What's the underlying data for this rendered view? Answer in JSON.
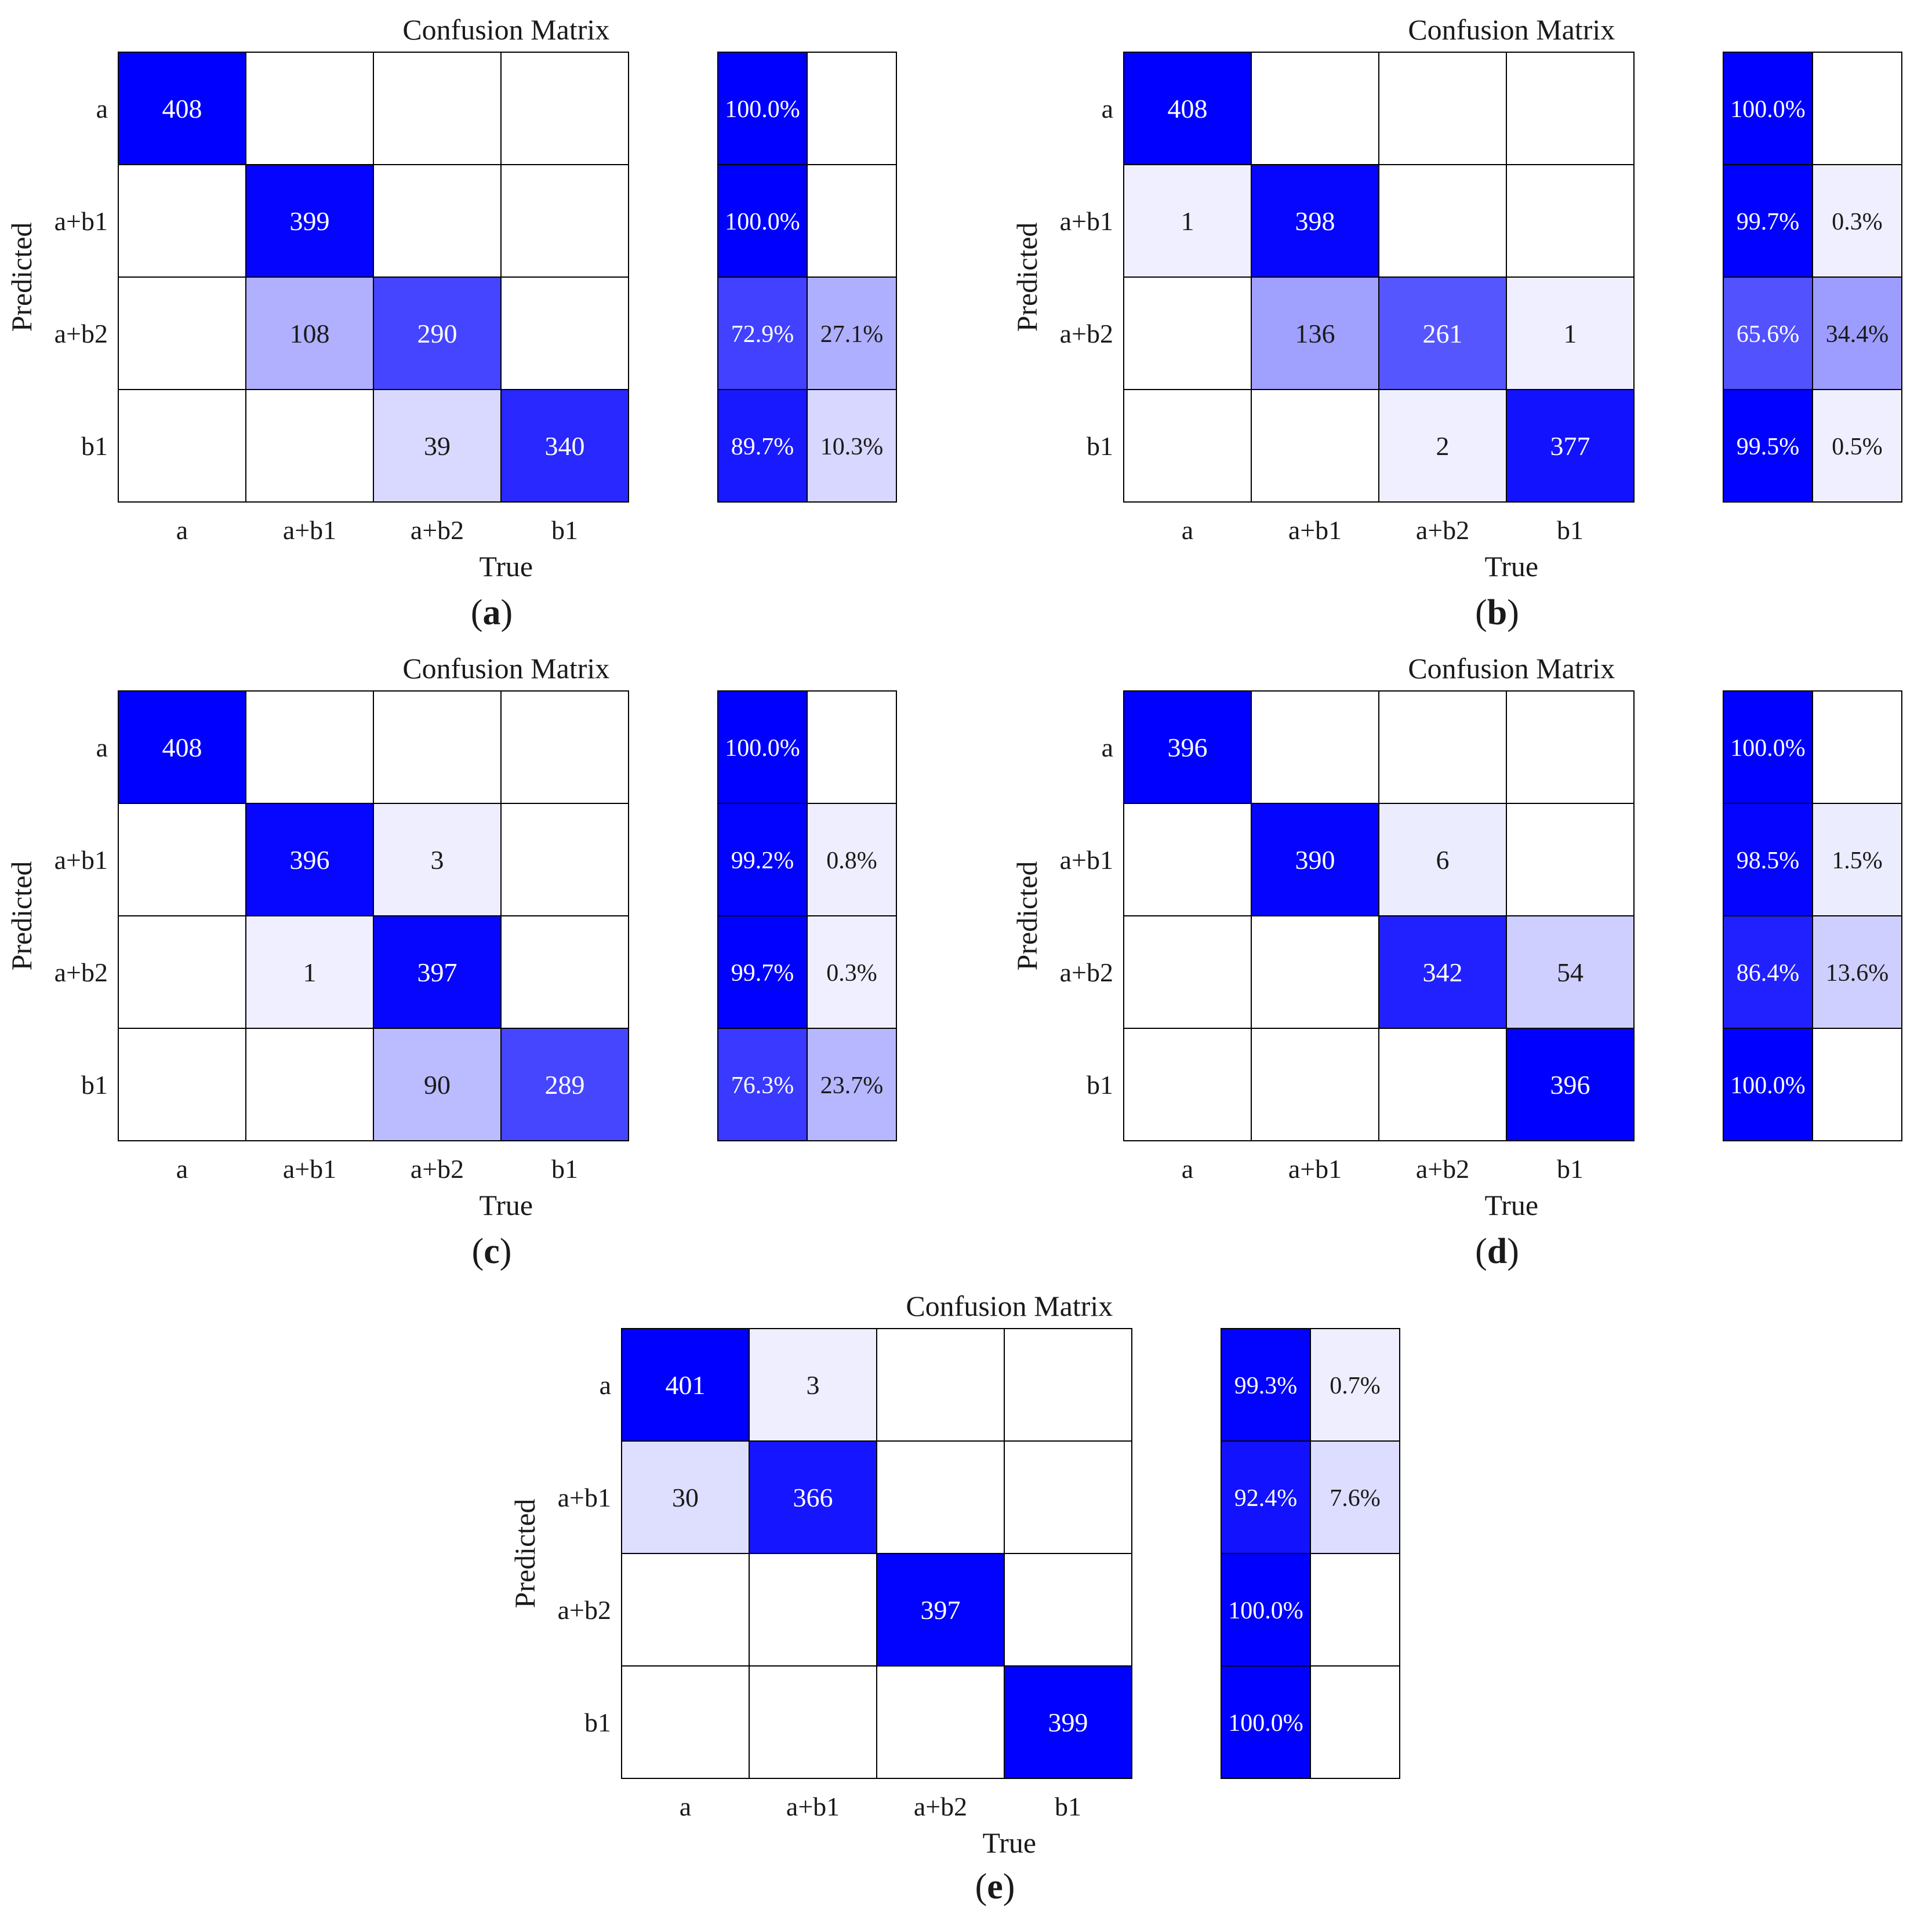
{
  "figure": {
    "captions": [
      "a",
      "b",
      "c",
      "d",
      "e"
    ]
  },
  "chart_data": [
    {
      "type": "heatmap",
      "panel": "a",
      "title": "Confusion Matrix",
      "xlabel": "True",
      "ylabel": "Predicted",
      "categories": [
        "a",
        "a+b1",
        "a+b2",
        "b1"
      ],
      "matrix": [
        [
          408,
          null,
          null,
          null
        ],
        [
          null,
          399,
          null,
          null
        ],
        [
          null,
          108,
          290,
          null
        ],
        [
          null,
          null,
          39,
          340
        ]
      ],
      "row_summary": [
        [
          "100.0%",
          ""
        ],
        [
          "100.0%",
          ""
        ],
        [
          "72.9%",
          "27.1%"
        ],
        [
          "89.7%",
          "10.3%"
        ]
      ],
      "row_summary_values": [
        [
          100.0,
          0
        ],
        [
          100.0,
          0
        ],
        [
          72.9,
          27.1
        ],
        [
          89.7,
          10.3
        ]
      ],
      "colors": {
        "high": "#0000ff",
        "low": "#ffffff",
        "grid": "#000000"
      }
    },
    {
      "type": "heatmap",
      "panel": "b",
      "title": "Confusion Matrix",
      "xlabel": "True",
      "ylabel": "Predicted",
      "categories": [
        "a",
        "a+b1",
        "a+b2",
        "b1"
      ],
      "matrix": [
        [
          408,
          null,
          null,
          null
        ],
        [
          1,
          398,
          null,
          null
        ],
        [
          null,
          136,
          261,
          1
        ],
        [
          null,
          null,
          2,
          377
        ]
      ],
      "row_summary": [
        [
          "100.0%",
          ""
        ],
        [
          "99.7%",
          "0.3%"
        ],
        [
          "65.6%",
          "34.4%"
        ],
        [
          "99.5%",
          "0.5%"
        ]
      ],
      "row_summary_values": [
        [
          100.0,
          0
        ],
        [
          99.7,
          0.3
        ],
        [
          65.6,
          34.4
        ],
        [
          99.5,
          0.5
        ]
      ],
      "colors": {
        "high": "#0000ff",
        "low": "#ffffff",
        "grid": "#000000"
      }
    },
    {
      "type": "heatmap",
      "panel": "c",
      "title": "Confusion Matrix",
      "xlabel": "True",
      "ylabel": "Predicted",
      "categories": [
        "a",
        "a+b1",
        "a+b2",
        "b1"
      ],
      "matrix": [
        [
          408,
          null,
          null,
          null
        ],
        [
          null,
          396,
          3,
          null
        ],
        [
          null,
          1,
          397,
          null
        ],
        [
          null,
          null,
          90,
          289
        ]
      ],
      "row_summary": [
        [
          "100.0%",
          ""
        ],
        [
          "99.2%",
          "0.8%"
        ],
        [
          "99.7%",
          "0.3%"
        ],
        [
          "76.3%",
          "23.7%"
        ]
      ],
      "row_summary_values": [
        [
          100.0,
          0
        ],
        [
          99.2,
          0.8
        ],
        [
          99.7,
          0.3
        ],
        [
          76.3,
          23.7
        ]
      ],
      "colors": {
        "high": "#0000ff",
        "low": "#ffffff",
        "grid": "#000000"
      }
    },
    {
      "type": "heatmap",
      "panel": "d",
      "title": "Confusion Matrix",
      "xlabel": "True",
      "ylabel": "Predicted",
      "categories": [
        "a",
        "a+b1",
        "a+b2",
        "b1"
      ],
      "matrix": [
        [
          396,
          null,
          null,
          null
        ],
        [
          null,
          390,
          6,
          null
        ],
        [
          null,
          null,
          342,
          54
        ],
        [
          null,
          null,
          null,
          396
        ]
      ],
      "row_summary": [
        [
          "100.0%",
          ""
        ],
        [
          "98.5%",
          "1.5%"
        ],
        [
          "86.4%",
          "13.6%"
        ],
        [
          "100.0%",
          ""
        ]
      ],
      "row_summary_values": [
        [
          100.0,
          0
        ],
        [
          98.5,
          1.5
        ],
        [
          86.4,
          13.6
        ],
        [
          100.0,
          0
        ]
      ],
      "colors": {
        "high": "#0000ff",
        "low": "#ffffff",
        "grid": "#000000"
      }
    },
    {
      "type": "heatmap",
      "panel": "e",
      "title": "Confusion Matrix",
      "xlabel": "True",
      "ylabel": "Predicted",
      "categories": [
        "a",
        "a+b1",
        "a+b2",
        "b1"
      ],
      "matrix": [
        [
          401,
          3,
          null,
          null
        ],
        [
          30,
          366,
          null,
          null
        ],
        [
          null,
          null,
          397,
          null
        ],
        [
          null,
          null,
          null,
          399
        ]
      ],
      "row_summary": [
        [
          "99.3%",
          "0.7%"
        ],
        [
          "92.4%",
          "7.6%"
        ],
        [
          "100.0%",
          ""
        ],
        [
          "100.0%",
          ""
        ]
      ],
      "row_summary_values": [
        [
          99.3,
          0.7
        ],
        [
          92.4,
          7.6
        ],
        [
          100.0,
          0
        ],
        [
          100.0,
          0
        ]
      ],
      "colors": {
        "high": "#0000ff",
        "low": "#ffffff",
        "grid": "#000000"
      }
    }
  ]
}
